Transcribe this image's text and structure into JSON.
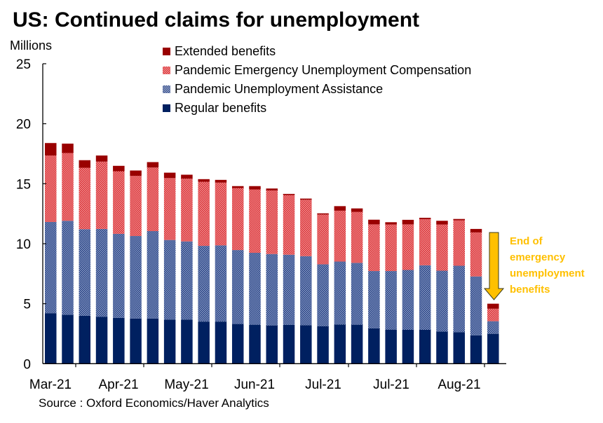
{
  "chart_data": {
    "type": "bar",
    "stacked": true,
    "title": "US: Continued claims for unemployment",
    "ylabel": "Millions",
    "xlabel": "",
    "ylim": [
      0,
      25
    ],
    "yticks": [
      "0",
      "5",
      "10",
      "15",
      "20",
      "25"
    ],
    "xtick_labels": [
      "Mar-21",
      "Apr-21",
      "May-21",
      "Jun-21",
      "Jul-21",
      "Jul-21",
      "Aug-21"
    ],
    "legend_position": "top",
    "series": [
      {
        "name": "Regular benefits",
        "color": "#002060",
        "values": [
          4.21,
          4.07,
          3.99,
          3.9,
          3.82,
          3.76,
          3.76,
          3.68,
          3.68,
          3.51,
          3.51,
          3.31,
          3.25,
          3.19,
          3.23,
          3.21,
          3.13,
          3.27,
          3.25,
          2.94,
          2.84,
          2.82,
          2.82,
          2.67,
          2.63,
          2.36,
          2.49
        ]
      },
      {
        "name": "Pandemic Unemployment Assistance",
        "color": "#2F4F8F",
        "values": [
          7.6,
          7.84,
          7.22,
          7.33,
          7.0,
          6.88,
          7.29,
          6.63,
          6.51,
          6.31,
          6.35,
          6.16,
          5.99,
          5.95,
          5.85,
          5.75,
          5.15,
          5.24,
          5.15,
          4.78,
          4.88,
          4.99,
          5.38,
          5.08,
          5.53,
          4.91,
          1.05
        ]
      },
      {
        "name": "Pandemic Emergency Unemployment Compensation",
        "color": "#E0282E",
        "values": [
          5.54,
          5.65,
          5.12,
          5.61,
          5.22,
          5.01,
          5.3,
          5.16,
          5.23,
          5.34,
          5.23,
          5.17,
          5.28,
          5.3,
          4.97,
          4.7,
          4.15,
          4.24,
          4.25,
          3.89,
          3.88,
          3.8,
          3.85,
          3.85,
          3.79,
          3.67,
          1.04
        ]
      },
      {
        "name": "Extended benefits",
        "color": "#990000",
        "values": [
          1.04,
          0.78,
          0.63,
          0.51,
          0.45,
          0.45,
          0.45,
          0.45,
          0.33,
          0.22,
          0.23,
          0.16,
          0.28,
          0.16,
          0.1,
          0.1,
          0.1,
          0.38,
          0.29,
          0.39,
          0.19,
          0.38,
          0.11,
          0.31,
          0.11,
          0.29,
          0.42
        ]
      }
    ],
    "legend": [
      "Extended benefits",
      "Pandemic Emergency Unemployment Compensation",
      "Pandemic Unemployment Assistance",
      "Regular benefits"
    ],
    "annotation": "End of emergency unemployment benefits",
    "annotation_lines": [
      "End of",
      "emergency",
      "unemployment",
      "benefits"
    ],
    "annotation_color": "#FFC000"
  },
  "source": "Source : Oxford Economics/Haver Analytics"
}
